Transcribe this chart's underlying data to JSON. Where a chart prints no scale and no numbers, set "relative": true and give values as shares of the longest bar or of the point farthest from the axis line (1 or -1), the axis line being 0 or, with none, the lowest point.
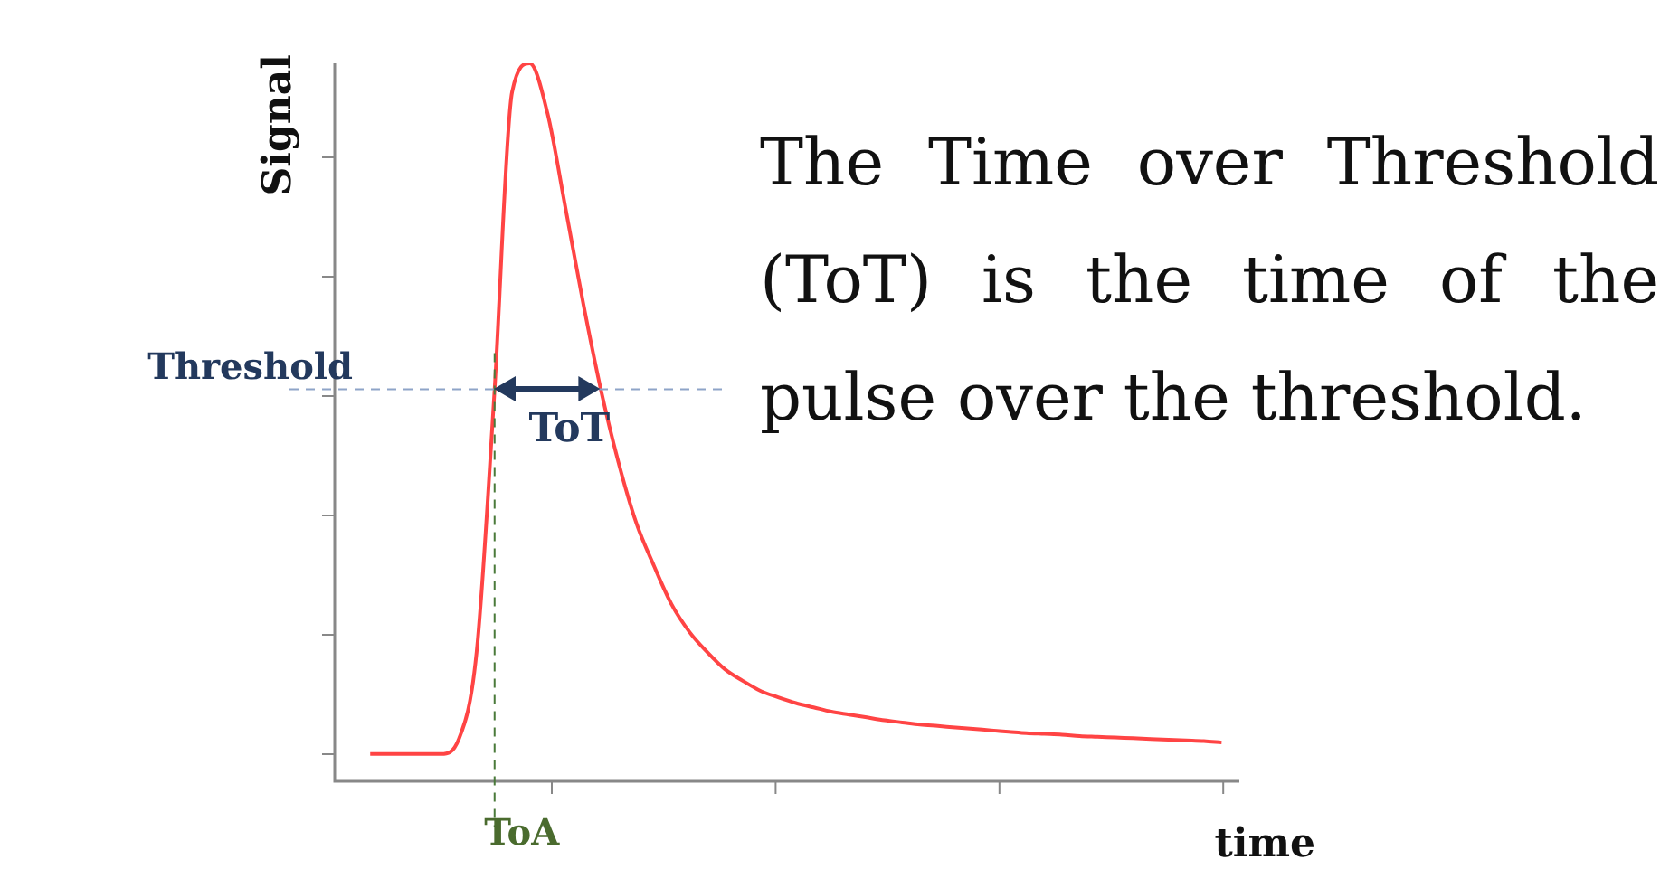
{
  "chart_data": {
    "type": "line",
    "relative": true,
    "xlabel": "time",
    "ylabel": "Signal",
    "marker": "none",
    "line_style": "solid",
    "legend": false,
    "categories": [
      null,
      null,
      null,
      null,
      null,
      null,
      null,
      null,
      null,
      null,
      null,
      null,
      null,
      null,
      null,
      null,
      null,
      null,
      null,
      null,
      null,
      null,
      null,
      null,
      null,
      null,
      null,
      null,
      null,
      null,
      null,
      null,
      null,
      null,
      null,
      null,
      null,
      null,
      null,
      null,
      null,
      null,
      null,
      null,
      null,
      null,
      null,
      null,
      null,
      null,
      null,
      null
    ],
    "series": [
      {
        "color": "#ff4444",
        "values": [
          null,
          null,
          0.038,
          0.038,
          0.038,
          0.038,
          0.038,
          0.059,
          0.18,
          0.54,
          0.96,
          1,
          0.93,
          0.8,
          0.667,
          0.546,
          0.444,
          0.36,
          0.3,
          0.246,
          0.208,
          0.18,
          0.156,
          0.14,
          0.126,
          0.117,
          0.109,
          0.103,
          0.097,
          0.093,
          0.089,
          0.085,
          0.082,
          0.079,
          0.077,
          0.075,
          0.073,
          0.071,
          0.069,
          0.067,
          0.066,
          0.065,
          0.063,
          0.062,
          0.061,
          0.06,
          0.059,
          0.058,
          0.057,
          0.056,
          0.054,
          null
        ]
      }
    ],
    "ref_lines": [
      {
        "axis": "y",
        "value": 0.546,
        "label": "Threshold",
        "color": "#8ea4c8",
        "line_style": "dashed"
      }
    ],
    "annotations": [
      "ToT",
      "ToA",
      "The Time over Threshold (ToT) is the time of the pulse over the threshold."
    ]
  }
}
